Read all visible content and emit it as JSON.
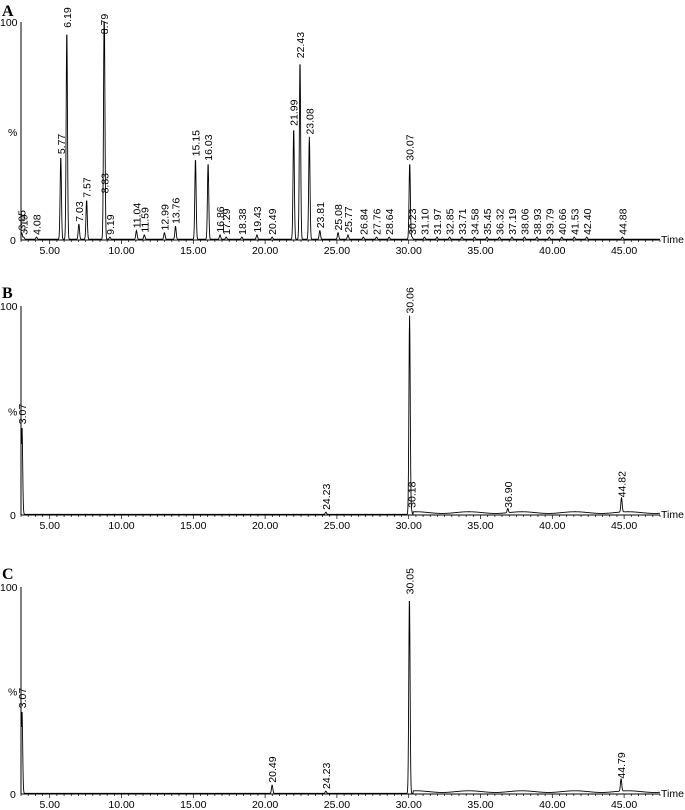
{
  "chart_data": [
    {
      "type": "line",
      "panel": "A",
      "xlabel": "Time",
      "ylabel_marks": {
        "top": "100",
        "mid": "%",
        "bottom": "0"
      },
      "xlim": [
        3.0,
        47.5
      ],
      "ylim": [
        0,
        100
      ],
      "xticks": [
        "5.00",
        "10.00",
        "15.00",
        "20.00",
        "25.00",
        "30.00",
        "35.00",
        "40.00",
        "45.00"
      ],
      "peaks": [
        {
          "label": "3.05",
          "x": 3.05,
          "y": 3
        },
        {
          "label": "3.19",
          "x": 3.19,
          "y": 1
        },
        {
          "label": "4.08",
          "x": 4.08,
          "y": 1
        },
        {
          "label": "5.77",
          "x": 5.77,
          "y": 38
        },
        {
          "label": "6.19",
          "x": 6.19,
          "y": 96
        },
        {
          "label": "7.03",
          "x": 7.03,
          "y": 7
        },
        {
          "label": "7.57",
          "x": 7.57,
          "y": 18
        },
        {
          "label": "8.79",
          "x": 8.79,
          "y": 93
        },
        {
          "label": "8.83",
          "x": 8.83,
          "y": 20
        },
        {
          "label": "9.19",
          "x": 9.19,
          "y": 1
        },
        {
          "label": "11.04",
          "x": 11.04,
          "y": 4
        },
        {
          "label": "11.59",
          "x": 11.59,
          "y": 2
        },
        {
          "label": "12.99",
          "x": 12.99,
          "y": 3
        },
        {
          "label": "13.76",
          "x": 13.76,
          "y": 6
        },
        {
          "label": "15.15",
          "x": 15.15,
          "y": 37
        },
        {
          "label": "16.03",
          "x": 16.03,
          "y": 35
        },
        {
          "label": "16.86",
          "x": 16.86,
          "y": 2
        },
        {
          "label": "17.29",
          "x": 17.29,
          "y": 1
        },
        {
          "label": "18.38",
          "x": 18.38,
          "y": 1
        },
        {
          "label": "19.43",
          "x": 19.43,
          "y": 2
        },
        {
          "label": "20.49",
          "x": 20.49,
          "y": 1
        },
        {
          "label": "21.99",
          "x": 21.99,
          "y": 51
        },
        {
          "label": "22.43",
          "x": 22.43,
          "y": 82
        },
        {
          "label": "23.08",
          "x": 23.08,
          "y": 47
        },
        {
          "label": "23.81",
          "x": 23.81,
          "y": 4
        },
        {
          "label": "25.08",
          "x": 25.08,
          "y": 3
        },
        {
          "label": "25.77",
          "x": 25.77,
          "y": 2
        },
        {
          "label": "26.84",
          "x": 26.84,
          "y": 1
        },
        {
          "label": "27.76",
          "x": 27.76,
          "y": 1
        },
        {
          "label": "28.64",
          "x": 28.64,
          "y": 1
        },
        {
          "label": "30.07",
          "x": 30.07,
          "y": 35
        },
        {
          "label": "30.23",
          "x": 30.23,
          "y": 1
        },
        {
          "label": "31.10",
          "x": 31.1,
          "y": 1
        },
        {
          "label": "31.97",
          "x": 31.97,
          "y": 1
        },
        {
          "label": "32.85",
          "x": 32.85,
          "y": 1
        },
        {
          "label": "33.71",
          "x": 33.71,
          "y": 1
        },
        {
          "label": "34.58",
          "x": 34.58,
          "y": 1
        },
        {
          "label": "35.45",
          "x": 35.45,
          "y": 1
        },
        {
          "label": "36.32",
          "x": 36.32,
          "y": 1
        },
        {
          "label": "37.19",
          "x": 37.19,
          "y": 1
        },
        {
          "label": "38.06",
          "x": 38.06,
          "y": 1
        },
        {
          "label": "38.93",
          "x": 38.93,
          "y": 1
        },
        {
          "label": "39.79",
          "x": 39.79,
          "y": 1
        },
        {
          "label": "40.66",
          "x": 40.66,
          "y": 1
        },
        {
          "label": "41.53",
          "x": 41.53,
          "y": 1
        },
        {
          "label": "42.40",
          "x": 42.4,
          "y": 1
        },
        {
          "label": "44.88",
          "x": 44.88,
          "y": 1
        }
      ]
    },
    {
      "type": "line",
      "panel": "B",
      "xlabel": "Time",
      "ylabel_marks": {
        "top": "100",
        "mid": "%",
        "bottom": "0"
      },
      "xlim": [
        3.0,
        47.5
      ],
      "ylim": [
        0,
        100
      ],
      "xticks": [
        "5.00",
        "10.00",
        "15.00",
        "20.00",
        "25.00",
        "30.00",
        "35.00",
        "40.00",
        "45.00"
      ],
      "peaks": [
        {
          "label": "3.07",
          "x": 3.07,
          "y": 42
        },
        {
          "label": "24.23",
          "x": 24.23,
          "y": 1
        },
        {
          "label": "30.06",
          "x": 30.06,
          "y": 95
        },
        {
          "label": "30.18",
          "x": 30.18,
          "y": 2
        },
        {
          "label": "36.90",
          "x": 36.9,
          "y": 2
        },
        {
          "label": "44.82",
          "x": 44.82,
          "y": 7
        }
      ]
    },
    {
      "type": "line",
      "panel": "C",
      "xlabel": "Time",
      "ylabel_marks": {
        "top": "100",
        "mid": "%",
        "bottom": "0"
      },
      "xlim": [
        3.0,
        47.5
      ],
      "ylim": [
        0,
        100
      ],
      "xticks": [
        "5.00",
        "10.00",
        "15.00",
        "20.00",
        "25.00",
        "30.00",
        "35.00",
        "40.00",
        "45.00"
      ],
      "peaks": [
        {
          "label": "3.07",
          "x": 3.07,
          "y": 40
        },
        {
          "label": "20.49",
          "x": 20.49,
          "y": 4
        },
        {
          "label": "24.23",
          "x": 24.23,
          "y": 1
        },
        {
          "label": "30.05",
          "x": 30.05,
          "y": 95
        },
        {
          "label": "44.79",
          "x": 44.79,
          "y": 6
        }
      ]
    }
  ]
}
